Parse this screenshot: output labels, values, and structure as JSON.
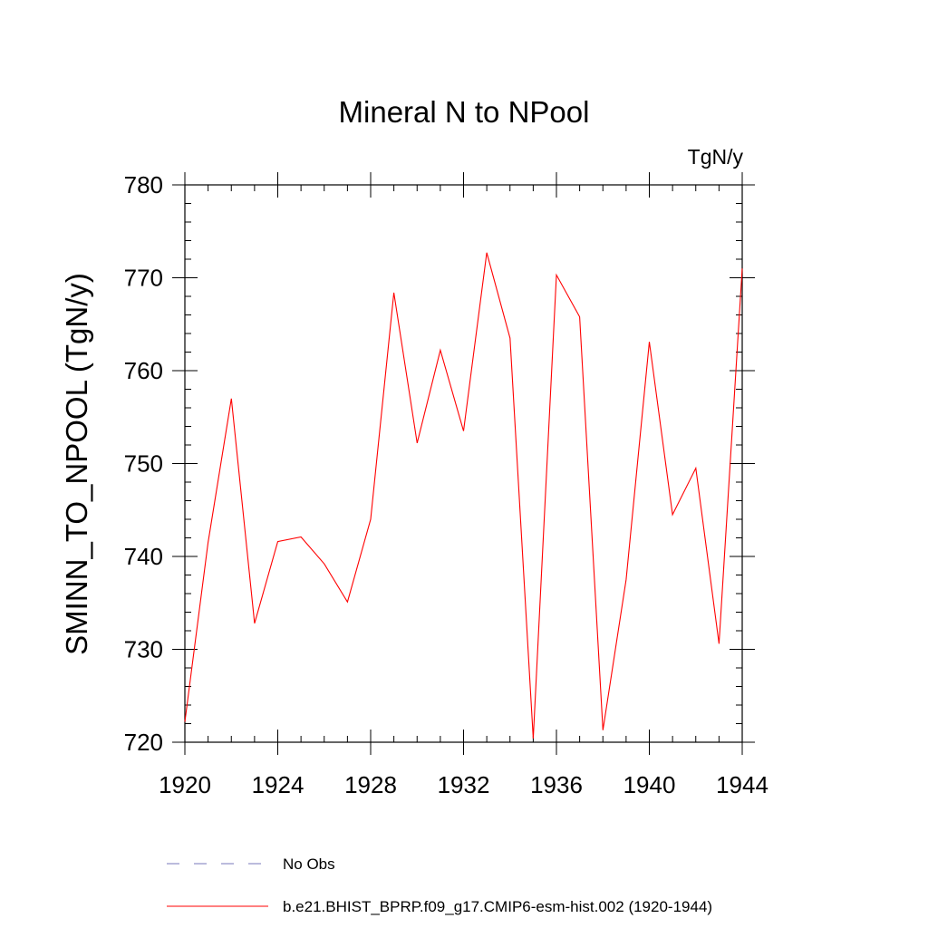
{
  "chart_data": {
    "type": "line",
    "title": "Mineral N to NPool",
    "units_label": "TgN/y",
    "ylabel": "SMINN_TO_NPOOL  (TgN/y)",
    "xlabel": "",
    "xlim": [
      1920,
      1944
    ],
    "ylim": [
      720,
      780
    ],
    "x_ticks": [
      1920,
      1924,
      1928,
      1932,
      1936,
      1940,
      1944
    ],
    "y_ticks": [
      720,
      730,
      740,
      750,
      760,
      770,
      780
    ],
    "x_minor_step": 1,
    "y_minor_step": 2,
    "grid": false,
    "legend_position": "bottom",
    "series": [
      {
        "name": "b.e21.BHIST_BPRP.f09_g17.CMIP6-esm-hist.002 (1920-1944)",
        "color": "#ff0000",
        "style": "solid",
        "x": [
          1920,
          1921,
          1922,
          1923,
          1924,
          1925,
          1926,
          1927,
          1928,
          1929,
          1930,
          1931,
          1932,
          1933,
          1934,
          1935,
          1936,
          1937,
          1938,
          1939,
          1940,
          1941,
          1942,
          1943,
          1944
        ],
        "values": [
          722.2,
          741.5,
          757.0,
          732.8,
          741.6,
          742.1,
          739.2,
          735.1,
          744.0,
          768.4,
          752.2,
          762.2,
          753.5,
          772.7,
          763.5,
          720.4,
          770.3,
          765.8,
          721.3,
          737.5,
          763.1,
          744.5,
          749.5,
          730.6,
          771.0
        ]
      }
    ],
    "legend": [
      {
        "label": "No Obs",
        "color": "#7777bb",
        "style": "dashed"
      },
      {
        "label": "b.e21.BHIST_BPRP.f09_g17.CMIP6-esm-hist.002 (1920-1944)",
        "color": "#ff0000",
        "style": "solid"
      }
    ]
  }
}
